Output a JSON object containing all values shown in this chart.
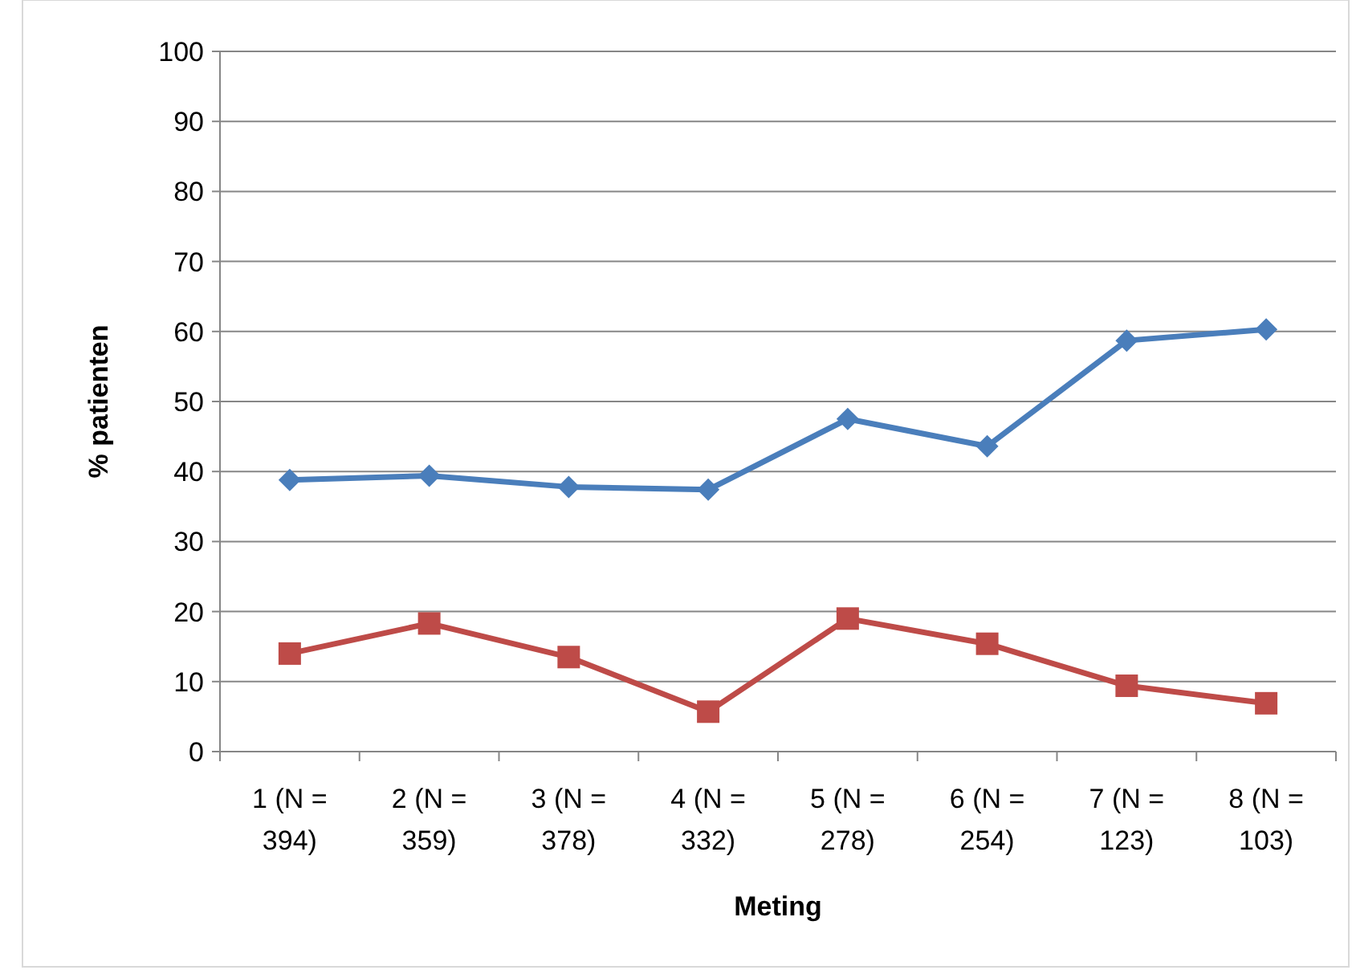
{
  "chart_data": {
    "type": "line",
    "xlabel": "Meting",
    "ylabel": "% patienten",
    "categories": [
      "1 (N = 394)",
      "2 (N = 359)",
      "3 (N = 378)",
      "4 (N = 332)",
      "5 (N = 278)",
      "6 (N = 254)",
      "7 (N = 123)",
      "8 (N = 103)"
    ],
    "series": [
      {
        "color": "#4a7ebb",
        "marker": "diamond",
        "values": [
          38.8,
          39.4,
          37.8,
          37.4,
          47.5,
          43.6,
          58.7,
          60.3
        ]
      },
      {
        "color": "#be4b48",
        "marker": "square",
        "values": [
          14.0,
          18.3,
          13.5,
          5.7,
          19.0,
          15.4,
          9.4,
          6.9
        ]
      }
    ],
    "ylim": [
      0,
      100
    ],
    "yticks": [
      0,
      10,
      20,
      30,
      40,
      50,
      60,
      70,
      80,
      90,
      100
    ],
    "grid": "y",
    "line_style": "solid"
  }
}
